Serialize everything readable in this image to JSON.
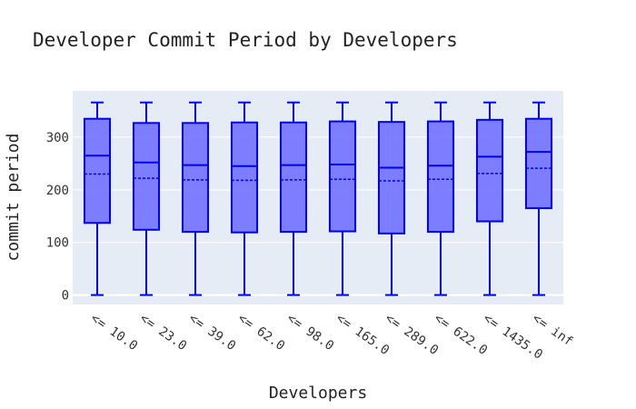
{
  "chart_data": {
    "type": "box",
    "title": "Developer Commit Period by Developers",
    "xlabel": "Developers",
    "ylabel": "commit period",
    "categories": [
      "<= 10.0",
      "<= 23.0",
      "<= 39.0",
      "<= 62.0",
      "<= 98.0",
      "<= 165.0",
      "<= 289.0",
      "<= 622.0",
      "<= 1435.0",
      "<= inf"
    ],
    "ylim": [
      -18,
      388
    ],
    "yticks": [
      0,
      100,
      200,
      300
    ],
    "grid": true,
    "legend": "none",
    "colors": {
      "box_fill": "#7777ff",
      "box_line": "#0000ee",
      "plot_bg": "#e5ecf6",
      "grid": "#ffffff"
    },
    "boxes": [
      {
        "min": 0,
        "q1": 137,
        "median": 265,
        "mean": 230,
        "q3": 335,
        "max": 366
      },
      {
        "min": 0,
        "q1": 124,
        "median": 252,
        "mean": 222,
        "q3": 327,
        "max": 366
      },
      {
        "min": 0,
        "q1": 120,
        "median": 247,
        "mean": 219,
        "q3": 327,
        "max": 366
      },
      {
        "min": 0,
        "q1": 119,
        "median": 245,
        "mean": 218,
        "q3": 328,
        "max": 366
      },
      {
        "min": 0,
        "q1": 120,
        "median": 247,
        "mean": 219,
        "q3": 328,
        "max": 366
      },
      {
        "min": 0,
        "q1": 121,
        "median": 248,
        "mean": 220,
        "q3": 330,
        "max": 366
      },
      {
        "min": 0,
        "q1": 117,
        "median": 242,
        "mean": 217,
        "q3": 329,
        "max": 366
      },
      {
        "min": 0,
        "q1": 120,
        "median": 246,
        "mean": 220,
        "q3": 330,
        "max": 366
      },
      {
        "min": 0,
        "q1": 140,
        "median": 263,
        "mean": 231,
        "q3": 333,
        "max": 366
      },
      {
        "min": 0,
        "q1": 165,
        "median": 272,
        "mean": 241,
        "q3": 335,
        "max": 366
      }
    ]
  }
}
